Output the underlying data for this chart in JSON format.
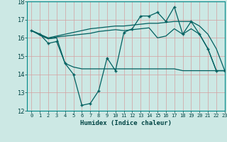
{
  "xlabel": "Humidex (Indice chaleur)",
  "bg_color": "#cce8e4",
  "grid_color": "#b0d8d0",
  "line_color": "#006060",
  "x": [
    0,
    1,
    2,
    3,
    4,
    5,
    6,
    7,
    8,
    9,
    10,
    11,
    12,
    13,
    14,
    15,
    16,
    17,
    18,
    19,
    20,
    21,
    22,
    23
  ],
  "line1_data": [
    16.4,
    16.2,
    15.7,
    15.8,
    14.6,
    14.0,
    12.3,
    12.4,
    13.1,
    14.9,
    14.2,
    16.3,
    16.5,
    17.2,
    17.2,
    17.4,
    16.9,
    17.7,
    16.2,
    16.9,
    16.2,
    15.4,
    14.2,
    14.2
  ],
  "line1_markers": [
    0,
    1,
    2,
    3,
    4,
    5,
    6,
    7,
    8,
    9,
    10,
    11,
    12,
    13,
    14,
    15,
    16,
    17,
    18,
    19,
    20,
    21,
    22,
    23
  ],
  "line2_data": [
    16.4,
    16.15,
    15.95,
    16.0,
    14.6,
    14.4,
    14.3,
    14.3,
    14.3,
    14.3,
    14.3,
    14.3,
    14.3,
    14.3,
    14.3,
    14.3,
    14.3,
    14.3,
    14.2,
    14.2,
    14.2,
    14.2,
    14.2,
    14.2
  ],
  "line3_data": [
    16.4,
    16.2,
    15.95,
    16.05,
    16.1,
    16.15,
    16.2,
    16.25,
    16.35,
    16.4,
    16.45,
    16.4,
    16.45,
    16.5,
    16.55,
    16.0,
    16.1,
    16.5,
    16.2,
    16.5,
    16.2,
    15.4,
    14.2,
    14.2
  ],
  "line4_data": [
    16.4,
    16.2,
    16.0,
    16.1,
    16.2,
    16.3,
    16.4,
    16.5,
    16.55,
    16.6,
    16.65,
    16.65,
    16.7,
    16.75,
    16.8,
    16.8,
    16.85,
    16.9,
    16.9,
    16.9,
    16.65,
    16.2,
    15.4,
    14.2
  ],
  "ylim": [
    12,
    18
  ],
  "xlim": [
    -0.5,
    23
  ],
  "yticks": [
    12,
    13,
    14,
    15,
    16,
    17,
    18
  ],
  "xticks": [
    0,
    1,
    2,
    3,
    4,
    5,
    6,
    7,
    8,
    9,
    10,
    11,
    12,
    13,
    14,
    15,
    16,
    17,
    18,
    19,
    20,
    21,
    22,
    23
  ],
  "xtick_labels": [
    "0",
    "1",
    "2",
    "3",
    "4",
    "5",
    "6",
    "7",
    "8",
    "9",
    "10",
    "11",
    "12",
    "13",
    "14",
    "15",
    "16",
    "17",
    "18",
    "19",
    "20",
    "21",
    "22",
    "23"
  ]
}
